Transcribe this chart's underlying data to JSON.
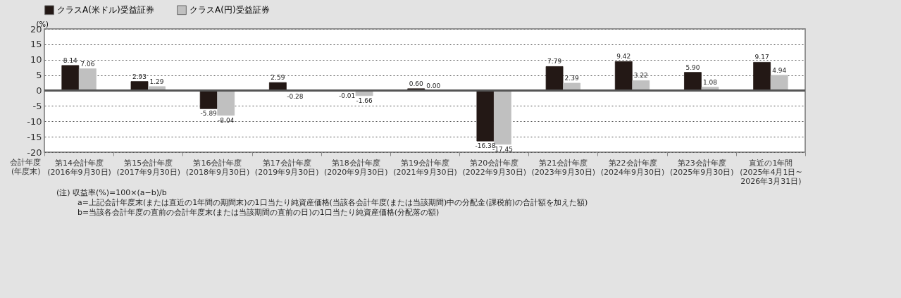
{
  "chart_data": {
    "type": "bar",
    "xlabel": "会計年度\n(年度末)",
    "ylabel": "(%)",
    "categories": [
      "第14会計年度\n(2016年9月30日)",
      "第15会計年度\n(2017年9月30日)",
      "第16会計年度\n(2018年9月30日)",
      "第17会計年度\n(2019年9月30日)",
      "第18会計年度\n(2020年9月30日)",
      "第19会計年度\n(2021年9月30日)",
      "第20会計年度\n(2022年9月30日)",
      "第21会計年度\n(2023年9月30日)",
      "第22会計年度\n(2024年9月30日)",
      "第23会計年度\n(2025年9月30日)",
      "直近の1年間\n(2025年4月1日~\n2026年3月31日)"
    ],
    "series": [
      {
        "name": "クラスA(米ドル)受益証券",
        "color": "#231815",
        "values": [
          8.14,
          2.93,
          -5.89,
          2.59,
          -0.01,
          0.6,
          -16.38,
          7.79,
          9.42,
          5.9,
          9.17
        ],
        "value_labels": [
          "8.14",
          "2.93",
          "-5.89",
          "2.59",
          "-0.01",
          "0.60",
          "-16.38",
          "7.79",
          "9.42",
          "5.90",
          "9.17"
        ]
      },
      {
        "name": "クラスA(円)受益証券",
        "color": "#c0c0c0",
        "values": [
          7.06,
          1.29,
          -8.04,
          -0.28,
          -1.66,
          0.0,
          -17.45,
          2.39,
          3.22,
          1.08,
          4.94
        ],
        "value_labels": [
          "7.06",
          "1.29",
          "-8.04",
          "-0.28",
          "-1.66",
          "0.00",
          "-17.45",
          "2.39",
          "3.22",
          "1.08",
          "4.94"
        ]
      }
    ],
    "ylim": [
      -20,
      20
    ],
    "yticks": [
      -20,
      -15,
      -10,
      -5,
      0,
      5,
      10,
      15,
      20
    ],
    "grid": "y",
    "legend": "top",
    "annotations": [
      "(注) 収益率(%)=100×(a−b)/b",
      "a=上記会計年度末(または直近の1年間の期間末)の1口当たり純資産価格(当該各会計年度(または当該期間)中の分配金(課税前)の合計額を加えた額)",
      "b=当該各会計年度の直前の会計年度末(または当該期間の直前の日)の1口当たり純資産価格(分配落の額)"
    ]
  }
}
